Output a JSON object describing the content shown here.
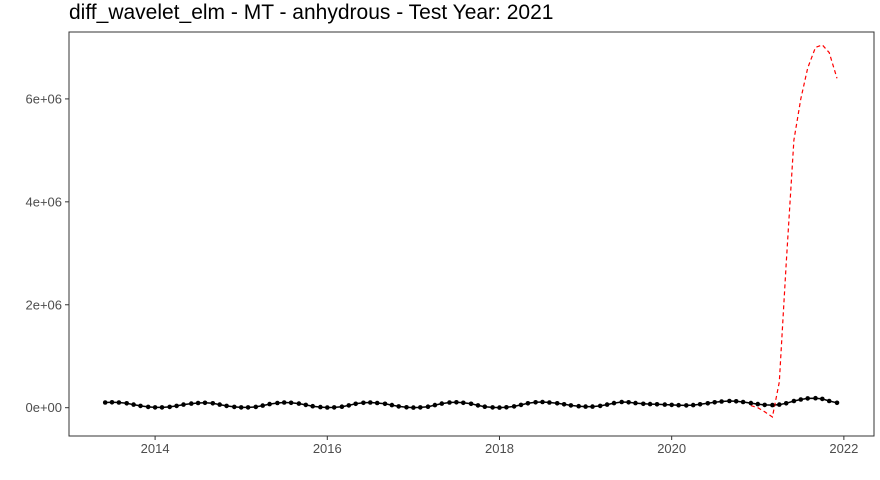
{
  "chart_data": {
    "type": "line",
    "title": "diff_wavelet_elm - MT - anhydrous - Test Year: 2021",
    "xlabel": "",
    "ylabel": "",
    "xlim": [
      2013.0,
      2022.35
    ],
    "ylim": [
      -550000,
      7300000
    ],
    "x_ticks": [
      2014,
      2016,
      2018,
      2020,
      2022
    ],
    "x_tick_labels": [
      "2014",
      "2016",
      "2018",
      "2020",
      "2022"
    ],
    "y_ticks": [
      0,
      2000000,
      4000000,
      6000000
    ],
    "y_tick_labels": [
      "0e+00",
      "2e+06",
      "4e+06",
      "6e+06"
    ],
    "grid": false,
    "legend": "none",
    "series": [
      {
        "style": "solid black line with points",
        "color": "#000000",
        "point_color": "#000000",
        "x": [
          2013.42,
          2013.5,
          2013.58,
          2013.67,
          2013.75,
          2013.83,
          2013.92,
          2014.0,
          2014.08,
          2014.17,
          2014.25,
          2014.33,
          2014.42,
          2014.5,
          2014.58,
          2014.67,
          2014.75,
          2014.83,
          2014.92,
          2015.0,
          2015.08,
          2015.17,
          2015.25,
          2015.33,
          2015.42,
          2015.5,
          2015.58,
          2015.67,
          2015.75,
          2015.83,
          2015.92,
          2016.0,
          2016.08,
          2016.17,
          2016.25,
          2016.33,
          2016.42,
          2016.5,
          2016.58,
          2016.67,
          2016.75,
          2016.83,
          2016.92,
          2017.0,
          2017.08,
          2017.17,
          2017.25,
          2017.33,
          2017.42,
          2017.5,
          2017.58,
          2017.67,
          2017.75,
          2017.83,
          2017.92,
          2018.0,
          2018.08,
          2018.17,
          2018.25,
          2018.33,
          2018.42,
          2018.5,
          2018.58,
          2018.67,
          2018.75,
          2018.83,
          2018.92,
          2019.0,
          2019.08,
          2019.17,
          2019.25,
          2019.33,
          2019.42,
          2019.5,
          2019.58,
          2019.67,
          2019.75,
          2019.83,
          2019.92,
          2020.0,
          2020.08,
          2020.17,
          2020.25,
          2020.33,
          2020.42,
          2020.5,
          2020.58,
          2020.67,
          2020.75,
          2020.83,
          2020.92,
          2021.0,
          2021.08,
          2021.17,
          2021.25,
          2021.33,
          2021.42,
          2021.5,
          2021.58,
          2021.67,
          2021.75,
          2021.83,
          2021.92
        ],
        "y": [
          100000,
          105000,
          100000,
          85000,
          60000,
          35000,
          15000,
          5000,
          5000,
          15000,
          35000,
          60000,
          80000,
          92000,
          95000,
          85000,
          60000,
          35000,
          15000,
          5000,
          5000,
          15000,
          40000,
          70000,
          92000,
          100000,
          95000,
          80000,
          55000,
          30000,
          12000,
          3000,
          5000,
          20000,
          45000,
          75000,
          95000,
          100000,
          92000,
          75000,
          50000,
          25000,
          8000,
          2000,
          5000,
          20000,
          50000,
          80000,
          100000,
          105000,
          95000,
          75000,
          45000,
          20000,
          5000,
          2000,
          8000,
          25000,
          55000,
          85000,
          105000,
          110000,
          100000,
          85000,
          65000,
          45000,
          30000,
          22000,
          22000,
          35000,
          60000,
          90000,
          110000,
          105000,
          90000,
          75000,
          70000,
          65000,
          60000,
          55000,
          48000,
          45000,
          50000,
          65000,
          85000,
          105000,
          120000,
          130000,
          125000,
          110000,
          90000,
          70000,
          55000,
          50000,
          60000,
          85000,
          130000,
          160000,
          180000,
          185000,
          170000,
          130000,
          95000
        ]
      },
      {
        "style": "dashed red line",
        "color": "#ff0000",
        "x": [
          2020.92,
          2021.0,
          2021.08,
          2021.17,
          2021.25,
          2021.33,
          2021.42,
          2021.5,
          2021.58,
          2021.67,
          2021.75,
          2021.83,
          2021.92
        ],
        "y": [
          40000,
          0,
          -80000,
          -180000,
          500000,
          2800000,
          5200000,
          6000000,
          6600000,
          7000000,
          7050000,
          6900000,
          6400000
        ]
      }
    ]
  }
}
